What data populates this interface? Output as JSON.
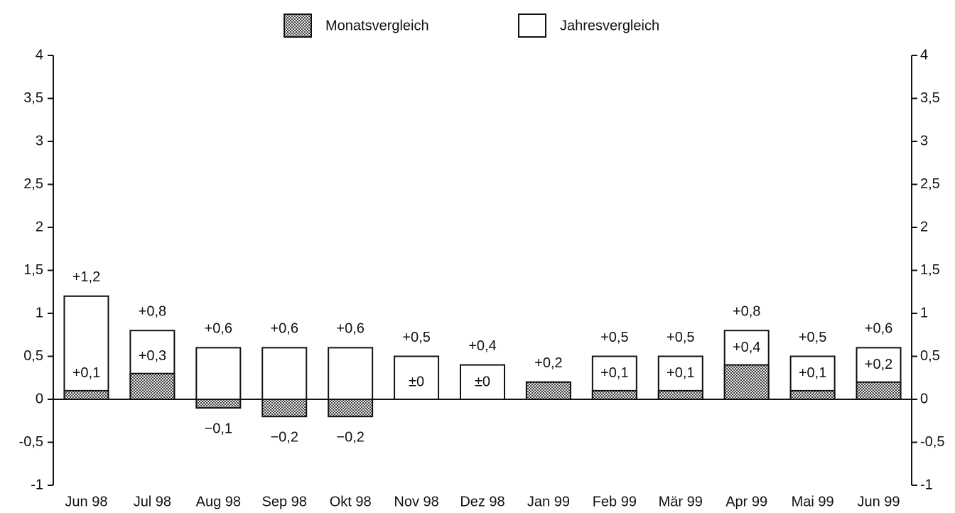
{
  "chart_data": {
    "type": "bar",
    "categories": [
      "Jun 98",
      "Jul 98",
      "Aug 98",
      "Sep 98",
      "Okt 98",
      "Nov 98",
      "Dez 98",
      "Jan 99",
      "Feb 99",
      "Mär 99",
      "Apr 99",
      "Mai 99",
      "Jun 99"
    ],
    "series": [
      {
        "name": "Monatsvergleich",
        "color": "#444444",
        "pattern": "dots",
        "values": [
          0.1,
          0.3,
          -0.1,
          -0.2,
          -0.2,
          0,
          0,
          0.2,
          0.1,
          0.1,
          0.4,
          0.1,
          0.2
        ],
        "value_labels": [
          "+0,1",
          "+0,3",
          "−0,1",
          "−0,2",
          "−0,2",
          "±0",
          "±0",
          null,
          "+0,1",
          "+0,1",
          "+0,4",
          "+0,1",
          "+0,2"
        ]
      },
      {
        "name": "Jahresvergleich",
        "color": "#ffffff",
        "values": [
          1.2,
          0.8,
          0.6,
          0.6,
          0.6,
          0.5,
          0.4,
          0.2,
          0.5,
          0.5,
          0.8,
          0.5,
          0.6
        ],
        "value_labels": [
          "+1,2",
          "+0,8",
          "+0,6",
          "+0,6",
          "+0,6",
          "+0,5",
          "+0,4",
          "+0,2",
          "+0,5",
          "+0,5",
          "+0,8",
          "+0,5",
          "+0,6"
        ]
      }
    ],
    "ylim": [
      -1,
      4
    ],
    "yticks": [
      {
        "value": -1,
        "label": "-1"
      },
      {
        "value": -0.5,
        "label": "-0,5"
      },
      0,
      {
        "value": 0.5,
        "label": "0,5"
      },
      1,
      {
        "value": 1.5,
        "label": "1,5"
      },
      2,
      {
        "value": 2.5,
        "label": "2,5"
      },
      3,
      {
        "value": 3.5,
        "label": "3,5"
      },
      4
    ],
    "y2lim": [
      -1,
      4
    ],
    "y2ticks": [
      {
        "value": -1,
        "label": "-1"
      },
      {
        "value": -0.5,
        "label": "-0,5"
      },
      0,
      {
        "value": 0.5,
        "label": "0,5"
      },
      1,
      {
        "value": 1.5,
        "label": "1,5"
      },
      2,
      {
        "value": 2.5,
        "label": "2,5"
      },
      3,
      {
        "value": 3.5,
        "label": "3,5"
      },
      4
    ],
    "legend": "top"
  }
}
